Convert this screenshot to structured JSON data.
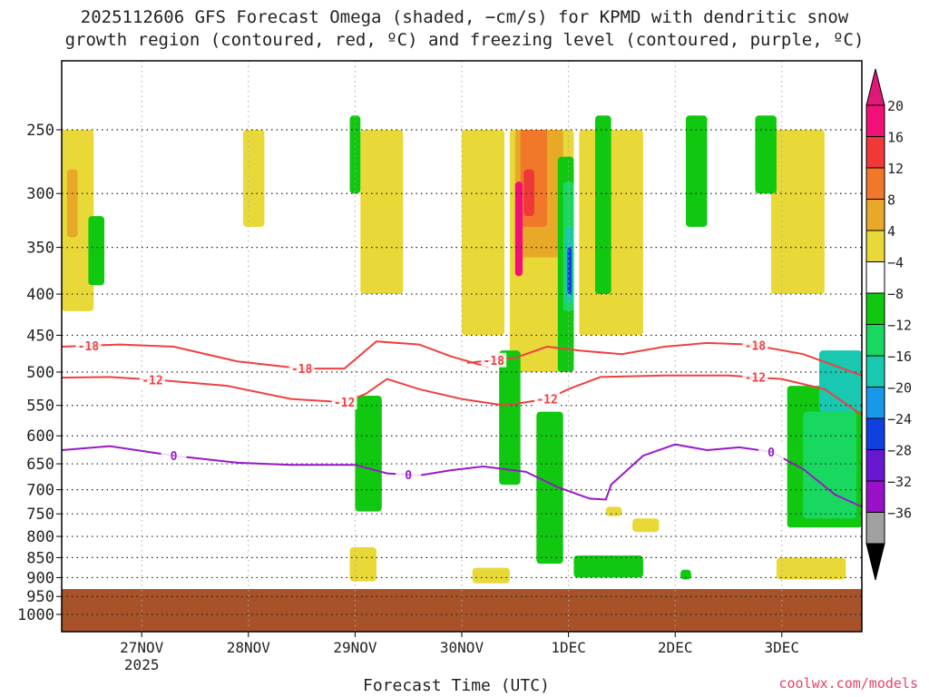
{
  "chart_data": {
    "type": "heatmap",
    "title_line1": "2025112606 GFS Forecast Omega (shaded, −cm/s) for KPMD with dendritic snow",
    "title_line2": "growth region (contoured, red, ºC) and freezing level (contoured, purple, ºC)",
    "xlabel": "Forecast Time (UTC)",
    "credit": "coolwx.com/models",
    "x_ticks": [
      {
        "t": 1.0,
        "label": "27NOV",
        "sub": "2025"
      },
      {
        "t": 2.0,
        "label": "28NOV",
        "sub": ""
      },
      {
        "t": 3.0,
        "label": "29NOV",
        "sub": ""
      },
      {
        "t": 4.0,
        "label": "30NOV",
        "sub": ""
      },
      {
        "t": 5.0,
        "label": "1DEC",
        "sub": ""
      },
      {
        "t": 6.0,
        "label": "2DEC",
        "sub": ""
      },
      {
        "t": 7.0,
        "label": "3DEC",
        "sub": ""
      }
    ],
    "x_range_days": [
      0.25,
      7.75
    ],
    "y_levels_hPa": [
      250,
      300,
      350,
      400,
      450,
      500,
      550,
      600,
      650,
      700,
      750,
      800,
      850,
      900,
      950,
      1000
    ],
    "ground_level_hPa": 930,
    "colorbar": {
      "labels": [
        "20",
        "16",
        "12",
        "8",
        "4",
        "−4",
        "−8",
        "−12",
        "−16",
        "−20",
        "−24",
        "−28",
        "−32",
        "−36"
      ],
      "colors": [
        "#f01078",
        "#f03838",
        "#f07828",
        "#e8a828",
        "#e8d838",
        "#ffffff",
        "#10c810",
        "#18d860",
        "#18c8b0",
        "#1898e8",
        "#1040e0",
        "#6818d0",
        "#9810c8",
        "#a0a0a0",
        "#000000"
      ],
      "top_color": "#e01878",
      "bottom_color": "#000000"
    },
    "contours": [
      {
        "name": "-18C",
        "color": "#f04040",
        "label": "-18",
        "points": [
          [
            0.25,
            465
          ],
          [
            0.8,
            462
          ],
          [
            1.3,
            465
          ],
          [
            1.9,
            485
          ],
          [
            2.5,
            495
          ],
          [
            2.9,
            495
          ],
          [
            3.2,
            458
          ],
          [
            3.6,
            462
          ],
          [
            3.9,
            478
          ],
          [
            4.25,
            493
          ]
        ],
        "label_t": [
          0.5,
          2.5
        ]
      },
      {
        "name": "-18C-b",
        "color": "#f04040",
        "label": "-18",
        "points": [
          [
            4.05,
            487
          ],
          [
            4.5,
            480
          ],
          [
            4.8,
            465
          ],
          [
            5.1,
            470
          ],
          [
            5.5,
            475
          ],
          [
            5.9,
            465
          ],
          [
            6.3,
            460
          ],
          [
            6.7,
            462
          ],
          [
            7.2,
            475
          ],
          [
            7.75,
            505
          ]
        ],
        "label_t": [
          4.3,
          6.75
        ]
      },
      {
        "name": "-12C",
        "color": "#f04040",
        "label": "-12",
        "points": [
          [
            0.25,
            508
          ],
          [
            0.7,
            507
          ],
          [
            1.2,
            512
          ],
          [
            1.8,
            520
          ],
          [
            2.4,
            540
          ],
          [
            2.9,
            545
          ],
          [
            3.1,
            532
          ],
          [
            3.3,
            510
          ],
          [
            3.6,
            525
          ],
          [
            4.0,
            540
          ],
          [
            4.4,
            550
          ],
          [
            4.8,
            540
          ],
          [
            5.0,
            525
          ],
          [
            5.3,
            507
          ],
          [
            5.9,
            505
          ],
          [
            6.5,
            505
          ],
          [
            7.0,
            510
          ],
          [
            7.4,
            525
          ],
          [
            7.75,
            565
          ]
        ],
        "label_t": [
          1.1,
          2.9,
          4.8,
          6.75
        ]
      },
      {
        "name": "0C",
        "color": "#9a18c8",
        "label": "0",
        "points": [
          [
            0.25,
            625
          ],
          [
            0.7,
            618
          ],
          [
            1.3,
            635
          ],
          [
            1.9,
            648
          ],
          [
            2.4,
            652
          ],
          [
            3.0,
            652
          ],
          [
            3.3,
            668
          ],
          [
            3.6,
            672
          ],
          [
            3.9,
            662
          ],
          [
            4.2,
            655
          ],
          [
            4.6,
            665
          ],
          [
            4.9,
            695
          ],
          [
            5.2,
            718
          ],
          [
            5.35,
            720
          ],
          [
            5.4,
            690
          ],
          [
            5.7,
            635
          ],
          [
            6.0,
            615
          ],
          [
            6.3,
            625
          ],
          [
            6.6,
            620
          ],
          [
            6.9,
            628
          ],
          [
            7.2,
            660
          ],
          [
            7.5,
            710
          ],
          [
            7.75,
            735
          ]
        ],
        "label_t": [
          1.3,
          3.5,
          6.9
        ]
      }
    ],
    "shaded_regions": [
      {
        "cls": "+4",
        "t0": 0.25,
        "t1": 0.55,
        "p0": 250,
        "p1": 420
      },
      {
        "cls": "+8",
        "t0": 0.3,
        "t1": 0.4,
        "p0": 280,
        "p1": 340
      },
      {
        "cls": "+4",
        "t0": 1.95,
        "t1": 2.15,
        "p0": 250,
        "p1": 330
      },
      {
        "cls": "+4",
        "t0": 3.05,
        "t1": 3.45,
        "p0": 250,
        "p1": 400
      },
      {
        "cls": "+4",
        "t0": 4.0,
        "t1": 4.4,
        "p0": 250,
        "p1": 450
      },
      {
        "cls": "+4",
        "t0": 4.45,
        "t1": 5.05,
        "p0": 250,
        "p1": 500
      },
      {
        "cls": "+8",
        "t0": 4.5,
        "t1": 4.95,
        "p0": 250,
        "p1": 360
      },
      {
        "cls": "+12",
        "t0": 4.55,
        "t1": 4.8,
        "p0": 250,
        "p1": 330
      },
      {
        "cls": "+16",
        "t0": 4.58,
        "t1": 4.68,
        "p0": 280,
        "p1": 320
      },
      {
        "cls": "+20",
        "t0": 4.5,
        "t1": 4.57,
        "p0": 290,
        "p1": 380
      },
      {
        "cls": "+4",
        "t0": 5.1,
        "t1": 5.7,
        "p0": 250,
        "p1": 450
      },
      {
        "cls": "+4",
        "t0": 6.9,
        "t1": 7.4,
        "p0": 250,
        "p1": 400
      },
      {
        "cls": "+4",
        "t0": 2.95,
        "t1": 3.2,
        "p0": 825,
        "p1": 910
      },
      {
        "cls": "+4",
        "t0": 4.1,
        "t1": 4.45,
        "p0": 875,
        "p1": 915
      },
      {
        "cls": "+4",
        "t0": 5.35,
        "t1": 5.5,
        "p0": 735,
        "p1": 755
      },
      {
        "cls": "+4",
        "t0": 5.6,
        "t1": 5.85,
        "p0": 760,
        "p1": 790
      },
      {
        "cls": "+4",
        "t0": 6.95,
        "t1": 7.6,
        "p0": 850,
        "p1": 905
      },
      {
        "cls": "-8",
        "t0": 3.0,
        "t1": 3.25,
        "p0": 535,
        "p1": 745
      },
      {
        "cls": "-8",
        "t0": 4.35,
        "t1": 4.55,
        "p0": 470,
        "p1": 690
      },
      {
        "cls": "-8",
        "t0": 4.7,
        "t1": 4.95,
        "p0": 560,
        "p1": 865
      },
      {
        "cls": "-8",
        "t0": 5.05,
        "t1": 5.7,
        "p0": 845,
        "p1": 900
      },
      {
        "cls": "-8",
        "t0": 6.05,
        "t1": 6.15,
        "p0": 880,
        "p1": 905
      },
      {
        "cls": "-8",
        "t0": 5.25,
        "t1": 5.4,
        "p0": 240,
        "p1": 400
      },
      {
        "cls": "-8",
        "t0": 6.1,
        "t1": 6.3,
        "p0": 240,
        "p1": 330
      },
      {
        "cls": "-8",
        "t0": 6.75,
        "t1": 6.95,
        "p0": 240,
        "p1": 300
      },
      {
        "cls": "-8",
        "t0": 2.95,
        "t1": 3.05,
        "p0": 240,
        "p1": 300
      },
      {
        "cls": "-8",
        "t0": 0.5,
        "t1": 0.65,
        "p0": 320,
        "p1": 390
      },
      {
        "cls": "-8",
        "t0": 7.05,
        "t1": 7.75,
        "p0": 520,
        "p1": 780
      },
      {
        "cls": "-12",
        "t0": 7.2,
        "t1": 7.7,
        "p0": 560,
        "p1": 760
      },
      {
        "cls": "-16",
        "t0": 7.35,
        "t1": 7.75,
        "p0": 470,
        "p1": 560
      },
      {
        "cls": "-8",
        "t0": 4.9,
        "t1": 5.05,
        "p0": 270,
        "p1": 500
      },
      {
        "cls": "-12",
        "t0": 4.95,
        "t1": 5.05,
        "p0": 290,
        "p1": 420
      },
      {
        "cls": "-16",
        "t0": 4.97,
        "t1": 5.04,
        "p0": 330,
        "p1": 410
      },
      {
        "cls": "-20",
        "t0": 4.99,
        "t1": 5.03,
        "p0": 350,
        "p1": 400
      }
    ],
    "ground_color": "#a8522a"
  }
}
